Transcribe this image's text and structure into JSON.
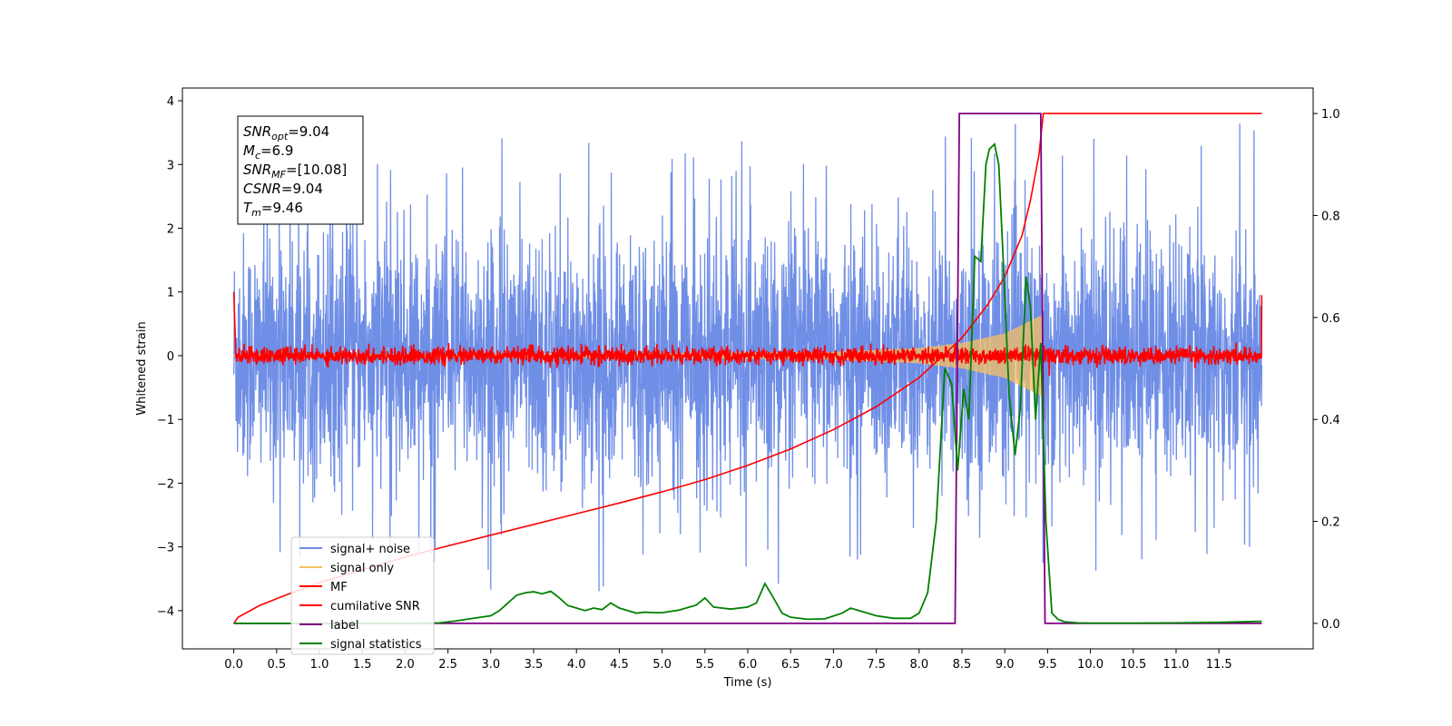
{
  "chart_data": {
    "type": "line",
    "title": "",
    "xlabel": "Time (s)",
    "ylabel": "Whitened strain",
    "xlim": [
      -0.6,
      12.6
    ],
    "ylim": [
      -4.6,
      4.2
    ],
    "y2lim": [
      -0.05,
      1.05
    ],
    "x_ticks": [
      0.0,
      0.5,
      1.0,
      1.5,
      2.0,
      2.5,
      3.0,
      3.5,
      4.0,
      4.5,
      5.0,
      5.5,
      6.0,
      6.5,
      7.0,
      7.5,
      8.0,
      8.5,
      9.0,
      9.5,
      10.0,
      10.5,
      11.0,
      11.5
    ],
    "x_tick_labels": [
      "0.0",
      "0.5",
      "1.0",
      "1.5",
      "2.0",
      "2.5",
      "3.0",
      "3.5",
      "4.0",
      "4.5",
      "5.0",
      "5.5",
      "6.0",
      "6.5",
      "7.0",
      "7.5",
      "8.0",
      "8.5",
      "9.0",
      "9.5",
      "10.0",
      "10.5",
      "11.0",
      "11.5"
    ],
    "y_ticks": [
      -4,
      -3,
      -2,
      -1,
      0,
      1,
      2,
      3,
      4
    ],
    "y_tick_labels": [
      "−4",
      "−3",
      "−2",
      "−1",
      "0",
      "1",
      "2",
      "3",
      "4"
    ],
    "y2_ticks": [
      0.0,
      0.2,
      0.4,
      0.6,
      0.8,
      1.0
    ],
    "y2_tick_labels": [
      "0.0",
      "0.2",
      "0.4",
      "0.6",
      "0.8",
      "1.0"
    ],
    "grid": false,
    "legend_placement": "lower-left",
    "colors": {
      "signal_noise": "#6f8ee6",
      "signal_only": "#f5c060",
      "mf": "#ff0000",
      "cumulative_snr": "#ff0000",
      "label": "#800080",
      "signal_statistics": "#008000"
    },
    "series": [
      {
        "name": "signal+ noise",
        "axis": "left",
        "style": "dense_noise",
        "x_range": [
          0.0,
          12.0
        ],
        "y_range_typical": [
          -2.2,
          2.2
        ],
        "y_extremes": [
          -4.1,
          3.8
        ]
      },
      {
        "name": "signal only",
        "axis": "left",
        "style": "chirp_envelope",
        "x_range": [
          0.0,
          9.45
        ],
        "envelope": {
          "x": [
            0.0,
            5.0,
            7.0,
            8.0,
            8.5,
            9.0,
            9.3,
            9.45
          ],
          "y": [
            0.02,
            0.04,
            0.06,
            0.12,
            0.2,
            0.35,
            0.55,
            0.65
          ]
        }
      },
      {
        "name": "MF",
        "axis": "left",
        "style": "noisy_baseline",
        "x_range": [
          0.0,
          12.0
        ],
        "y_center": 0.0,
        "y_spread": 0.12,
        "y_ends": [
          1.0,
          0.95
        ]
      },
      {
        "name": "cumilative SNR",
        "axis": "right",
        "x": [
          0.0,
          0.05,
          0.3,
          0.6,
          1.0,
          1.5,
          2.0,
          2.5,
          3.0,
          3.5,
          4.0,
          4.5,
          5.0,
          5.5,
          6.0,
          6.5,
          7.0,
          7.5,
          8.0,
          8.5,
          8.8,
          9.0,
          9.2,
          9.3,
          9.4,
          9.45,
          9.5,
          10.0,
          11.0,
          12.0
        ],
        "y": [
          0.0,
          0.012,
          0.035,
          0.055,
          0.08,
          0.105,
          0.13,
          0.152,
          0.173,
          0.194,
          0.215,
          0.236,
          0.258,
          0.282,
          0.31,
          0.342,
          0.38,
          0.425,
          0.482,
          0.56,
          0.625,
          0.68,
          0.76,
          0.83,
          0.92,
          1.0,
          1.0,
          1.0,
          1.0,
          1.0
        ]
      },
      {
        "name": "label",
        "axis": "right",
        "x": [
          0.0,
          8.42,
          8.47,
          9.42,
          9.47,
          12.0
        ],
        "y": [
          0.0,
          0.0,
          1.0,
          1.0,
          0.0,
          0.0
        ]
      },
      {
        "name": "signal statistics",
        "axis": "right",
        "x": [
          0.0,
          2.0,
          2.4,
          2.6,
          2.8,
          3.0,
          3.1,
          3.2,
          3.3,
          3.4,
          3.5,
          3.6,
          3.7,
          3.8,
          3.9,
          4.0,
          4.1,
          4.2,
          4.3,
          4.4,
          4.5,
          4.6,
          4.7,
          4.8,
          4.9,
          5.0,
          5.2,
          5.4,
          5.5,
          5.6,
          5.8,
          6.0,
          6.1,
          6.2,
          6.3,
          6.4,
          6.5,
          6.7,
          6.9,
          7.1,
          7.2,
          7.3,
          7.5,
          7.7,
          7.9,
          8.0,
          8.1,
          8.2,
          8.3,
          8.38,
          8.45,
          8.52,
          8.58,
          8.65,
          8.72,
          8.78,
          8.82,
          8.88,
          8.93,
          8.98,
          9.05,
          9.12,
          9.18,
          9.25,
          9.3,
          9.36,
          9.42,
          9.48,
          9.55,
          9.62,
          9.7,
          9.85,
          10.0,
          10.5,
          11.0,
          11.5,
          12.0
        ],
        "y": [
          0.0,
          0.0,
          0.001,
          0.005,
          0.01,
          0.015,
          0.025,
          0.04,
          0.055,
          0.06,
          0.062,
          0.058,
          0.063,
          0.05,
          0.035,
          0.03,
          0.025,
          0.03,
          0.027,
          0.04,
          0.03,
          0.025,
          0.02,
          0.022,
          0.021,
          0.021,
          0.026,
          0.036,
          0.05,
          0.032,
          0.028,
          0.032,
          0.04,
          0.078,
          0.05,
          0.02,
          0.012,
          0.008,
          0.009,
          0.02,
          0.03,
          0.025,
          0.015,
          0.01,
          0.01,
          0.02,
          0.06,
          0.2,
          0.5,
          0.47,
          0.3,
          0.46,
          0.4,
          0.72,
          0.71,
          0.9,
          0.93,
          0.94,
          0.9,
          0.72,
          0.45,
          0.33,
          0.42,
          0.68,
          0.62,
          0.4,
          0.55,
          0.2,
          0.02,
          0.008,
          0.003,
          0.001,
          0.0005,
          0.0005,
          0.001,
          0.002,
          0.004
        ]
      }
    ],
    "annotation": {
      "lines": [
        {
          "base": "SNR",
          "sub": "opt",
          "value": "=9.04"
        },
        {
          "base": "M",
          "sub": "c",
          "value": "=6.9"
        },
        {
          "base": "SNR",
          "sub": "MF",
          "value": "=[10.08]"
        },
        {
          "base": "CSNR",
          "sub": "",
          "value": "=9.04"
        },
        {
          "base": "T",
          "sub": "m",
          "value": "=9.46"
        }
      ]
    }
  }
}
